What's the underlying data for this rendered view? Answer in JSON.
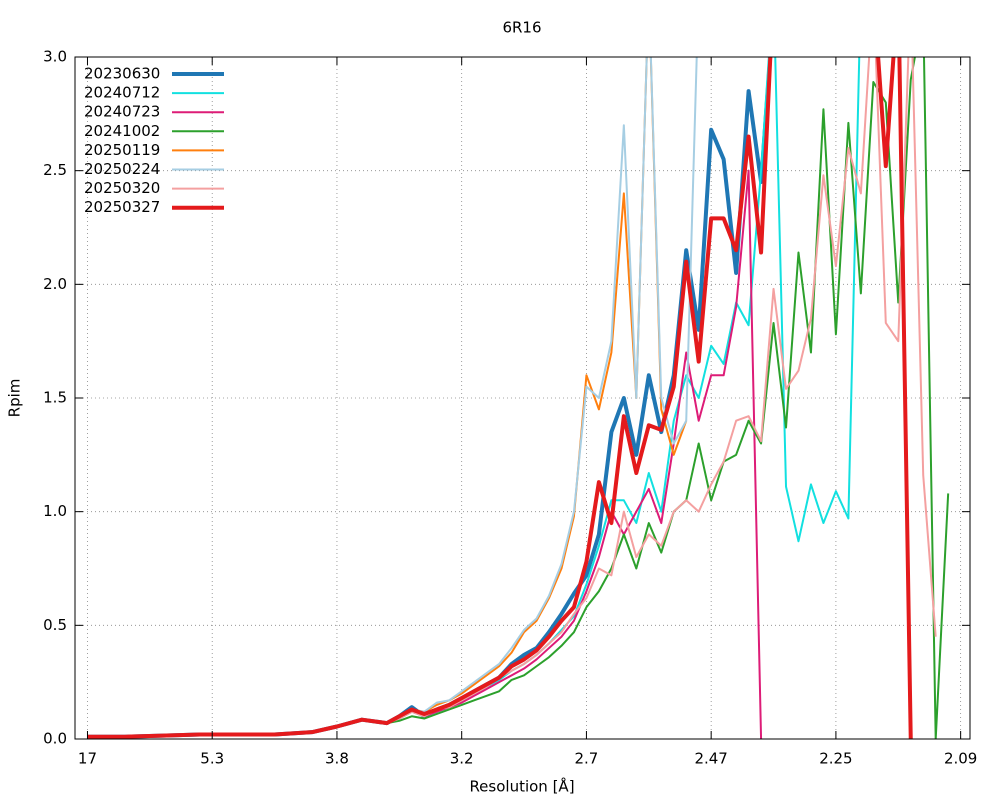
{
  "chart_data": {
    "type": "line",
    "title": "6R16",
    "xlabel": "Resolution [Å]",
    "ylabel": "Rpim",
    "x": [
      0,
      6,
      12,
      18,
      24,
      30,
      36,
      40,
      44,
      48,
      50,
      52,
      54,
      56,
      58,
      60,
      62,
      64,
      66,
      68,
      70,
      72,
      74,
      76,
      78,
      80,
      82,
      84,
      86,
      88,
      90,
      92,
      94,
      96,
      98,
      100,
      102,
      104,
      106,
      108,
      110,
      112,
      114,
      116,
      118,
      120,
      122,
      124,
      126,
      128,
      130,
      132,
      134,
      136,
      138
    ],
    "xlim": [
      -2,
      141.5
    ],
    "xticks": [
      {
        "value": 0,
        "label": "17"
      },
      {
        "value": 20,
        "label": "5.3"
      },
      {
        "value": 40,
        "label": "3.8"
      },
      {
        "value": 60,
        "label": "3.2"
      },
      {
        "value": 80,
        "label": "2.7"
      },
      {
        "value": 100,
        "label": "2.47"
      },
      {
        "value": 120,
        "label": "2.25"
      },
      {
        "value": 140,
        "label": "2.09"
      }
    ],
    "ylim": [
      0,
      3
    ],
    "yticks": [
      {
        "value": 0,
        "label": "0.0"
      },
      0.5,
      {
        "value": 1,
        "label": "1.0"
      },
      1.5,
      {
        "value": 2,
        "label": "2.0"
      },
      2.5,
      {
        "value": 3,
        "label": "3.0"
      }
    ],
    "grid": true,
    "legend": "top-left",
    "series": [
      {
        "name": "20230630",
        "color": "#1f77b4",
        "width": 4,
        "values": [
          0.01,
          0.01,
          0.015,
          0.02,
          0.02,
          0.02,
          0.03,
          0.055,
          0.085,
          0.07,
          0.1,
          0.14,
          0.1,
          0.13,
          0.15,
          0.18,
          0.21,
          0.24,
          0.27,
          0.33,
          0.37,
          0.4,
          0.47,
          0.55,
          0.64,
          0.72,
          0.9,
          1.35,
          1.5,
          1.25,
          1.6,
          1.35,
          1.6,
          2.15,
          1.8,
          2.68,
          2.55,
          2.05,
          2.85,
          2.45,
          3.2,
          null,
          null,
          null,
          null,
          null,
          null,
          null,
          null,
          null,
          null,
          null,
          null,
          null,
          null
        ]
      },
      {
        "name": "20240712",
        "color": "#12e0e0",
        "width": 2,
        "values": [
          0.01,
          0.01,
          0.015,
          0.02,
          0.02,
          0.02,
          0.03,
          0.055,
          0.085,
          0.07,
          0.09,
          0.12,
          0.1,
          0.12,
          0.14,
          0.17,
          0.2,
          0.23,
          0.26,
          0.3,
          0.33,
          0.37,
          0.42,
          0.48,
          0.54,
          0.68,
          0.85,
          1.05,
          1.05,
          0.95,
          1.17,
          1.0,
          1.4,
          1.6,
          1.5,
          1.73,
          1.65,
          1.92,
          1.82,
          2.5,
          3.3,
          1.11,
          0.87,
          1.12,
          0.95,
          1.09,
          0.97,
          3.3,
          null,
          null,
          null,
          null,
          null,
          null,
          null
        ]
      },
      {
        "name": "20240723",
        "color": "#dd1c77",
        "width": 2,
        "values": [
          0.01,
          0.01,
          0.015,
          0.02,
          0.02,
          0.02,
          0.03,
          0.055,
          0.085,
          0.07,
          0.09,
          0.12,
          0.1,
          0.12,
          0.14,
          0.16,
          0.19,
          0.22,
          0.25,
          0.28,
          0.31,
          0.35,
          0.4,
          0.45,
          0.52,
          0.65,
          0.8,
          1.0,
          0.9,
          1.0,
          1.1,
          0.95,
          1.3,
          1.7,
          1.4,
          1.6,
          1.6,
          1.9,
          2.5,
          0.0,
          null,
          null,
          null,
          null,
          null,
          null,
          null,
          null,
          null,
          null,
          null,
          null,
          null,
          null,
          null
        ]
      },
      {
        "name": "20241002",
        "color": "#2ca02c",
        "width": 2,
        "values": [
          0.01,
          0.01,
          0.015,
          0.02,
          0.02,
          0.02,
          0.03,
          0.055,
          0.085,
          0.07,
          0.08,
          0.1,
          0.09,
          0.11,
          0.13,
          0.15,
          0.17,
          0.19,
          0.21,
          0.26,
          0.28,
          0.32,
          0.36,
          0.41,
          0.47,
          0.58,
          0.65,
          0.75,
          0.9,
          0.75,
          0.95,
          0.82,
          1.0,
          1.05,
          1.3,
          1.05,
          1.22,
          1.25,
          1.4,
          1.3,
          1.83,
          1.37,
          2.14,
          1.7,
          2.77,
          1.78,
          2.71,
          1.96,
          2.89,
          2.8,
          1.92,
          2.9,
          3.2,
          0.0,
          1.08
        ]
      },
      {
        "name": "20250119",
        "color": "#ff7f0e",
        "width": 2,
        "values": [
          0.01,
          0.01,
          0.015,
          0.02,
          0.02,
          0.02,
          0.03,
          0.055,
          0.085,
          0.07,
          0.1,
          0.13,
          0.12,
          0.15,
          0.17,
          0.2,
          0.24,
          0.28,
          0.32,
          0.38,
          0.47,
          0.52,
          0.62,
          0.75,
          0.98,
          1.6,
          1.45,
          1.7,
          2.4,
          1.5,
          3.3,
          1.45,
          1.25,
          1.4,
          null,
          null,
          null,
          null,
          null,
          null,
          null,
          null,
          null,
          null,
          null,
          null,
          null,
          null,
          null,
          null,
          null,
          null,
          null,
          null,
          null
        ]
      },
      {
        "name": "20250224",
        "color": "#a6cee3",
        "width": 2,
        "values": [
          0.01,
          0.01,
          0.015,
          0.02,
          0.02,
          0.02,
          0.03,
          0.055,
          0.085,
          0.07,
          0.1,
          0.13,
          0.12,
          0.16,
          0.17,
          0.21,
          0.25,
          0.29,
          0.33,
          0.4,
          0.48,
          0.53,
          0.63,
          0.77,
          1.0,
          1.55,
          1.5,
          1.75,
          2.7,
          1.5,
          3.3,
          1.5,
          1.3,
          1.4,
          3.3,
          null,
          null,
          null,
          null,
          null,
          null,
          null,
          null,
          null,
          null,
          null,
          null,
          null,
          null,
          null,
          null,
          null,
          null,
          null,
          null
        ]
      },
      {
        "name": "20250320",
        "color": "#f4a0a0",
        "width": 2,
        "values": [
          0.01,
          0.01,
          0.015,
          0.02,
          0.02,
          0.02,
          0.03,
          0.055,
          0.085,
          0.07,
          0.09,
          0.12,
          0.1,
          0.13,
          0.14,
          0.17,
          0.2,
          0.23,
          0.27,
          0.3,
          0.33,
          0.37,
          0.42,
          0.47,
          0.55,
          0.62,
          0.75,
          0.72,
          1.0,
          0.8,
          0.9,
          0.85,
          1.0,
          1.05,
          1.0,
          1.12,
          1.22,
          1.4,
          1.42,
          1.31,
          1.98,
          1.54,
          1.62,
          1.85,
          2.48,
          2.08,
          2.6,
          2.4,
          3.3,
          1.83,
          1.75,
          3.3,
          1.16,
          0.45,
          null
        ]
      },
      {
        "name": "20250327",
        "color": "#e41a1c",
        "width": 4,
        "values": [
          0.01,
          0.01,
          0.015,
          0.02,
          0.02,
          0.02,
          0.03,
          0.055,
          0.085,
          0.07,
          0.1,
          0.13,
          0.11,
          0.13,
          0.15,
          0.18,
          0.21,
          0.24,
          0.27,
          0.32,
          0.35,
          0.39,
          0.45,
          0.52,
          0.58,
          0.78,
          1.13,
          0.95,
          1.42,
          1.17,
          1.38,
          1.36,
          1.55,
          2.1,
          1.66,
          2.29,
          2.29,
          2.15,
          2.65,
          2.14,
          3.3,
          null,
          null,
          null,
          null,
          null,
          null,
          null,
          3.3,
          2.52,
          3.3,
          0.0,
          null,
          null,
          null
        ]
      }
    ]
  }
}
